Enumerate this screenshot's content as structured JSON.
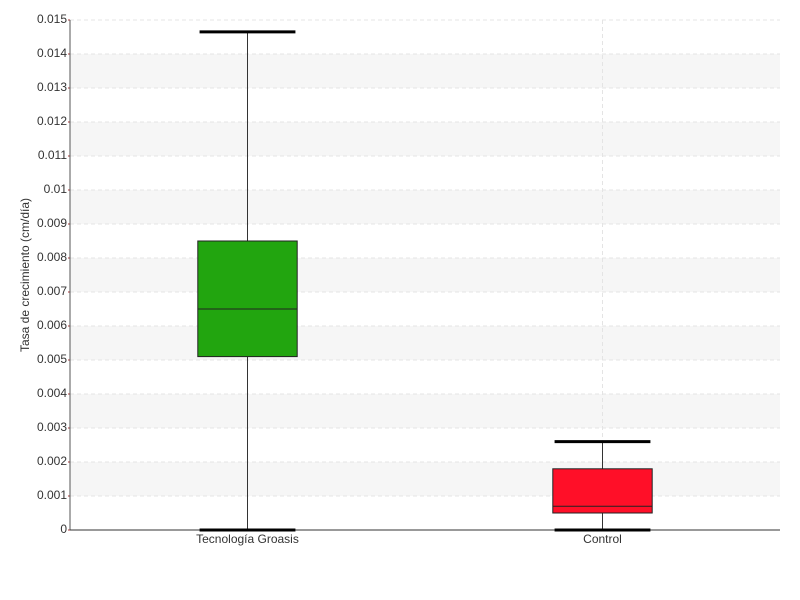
{
  "chart_data": {
    "type": "box",
    "y_label": "Tasa de crecimiento (cm/día)",
    "categories": [
      "Tecnología Groasis",
      "Control"
    ],
    "boxes": [
      {
        "min": 0,
        "q1": 0.0051,
        "median": 0.0065,
        "q3": 0.0085,
        "max": 0.01465,
        "color": "#22a50f"
      },
      {
        "min": 0,
        "q1": 0.0005,
        "median": 0.0007,
        "q3": 0.0018,
        "max": 0.0026,
        "color": "#ff0f28"
      }
    ],
    "ylim": [
      0,
      0.015
    ],
    "yticks": [
      0,
      0.001,
      0.002,
      0.003,
      0.004,
      0.005,
      0.006,
      0.007,
      0.008,
      0.009,
      0.01,
      0.011,
      0.012,
      0.013,
      0.014,
      0.015
    ],
    "grid": true
  }
}
